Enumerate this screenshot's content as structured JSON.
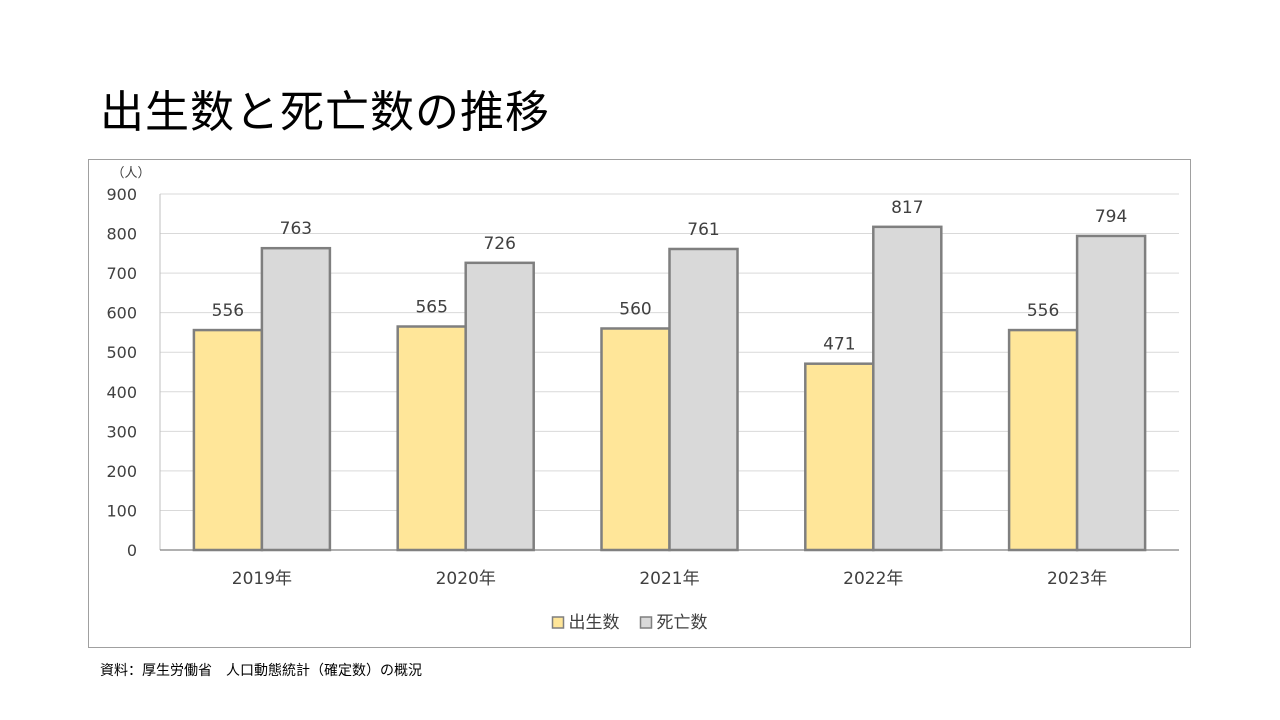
{
  "title": "出生数と死亡数の推移",
  "source": "資料：厚生労働省　人口動態統計（確定数）の概況",
  "chart_data": {
    "type": "bar",
    "unit_label": "（人）",
    "categories": [
      "2019年",
      "2020年",
      "2021年",
      "2022年",
      "2023年"
    ],
    "series": [
      {
        "name": "出生数",
        "values": [
          556,
          565,
          560,
          471,
          556
        ],
        "color": "#FFE699"
      },
      {
        "name": "死亡数",
        "values": [
          763,
          726,
          761,
          817,
          794
        ],
        "color": "#D9D9D9"
      }
    ],
    "ylim": [
      0,
      900
    ],
    "yticks": [
      0,
      100,
      200,
      300,
      400,
      500,
      600,
      700,
      800,
      900
    ],
    "bar_stroke_color": "#7F7F7F",
    "grid": true,
    "legend_position": "bottom",
    "data_labels": true
  }
}
